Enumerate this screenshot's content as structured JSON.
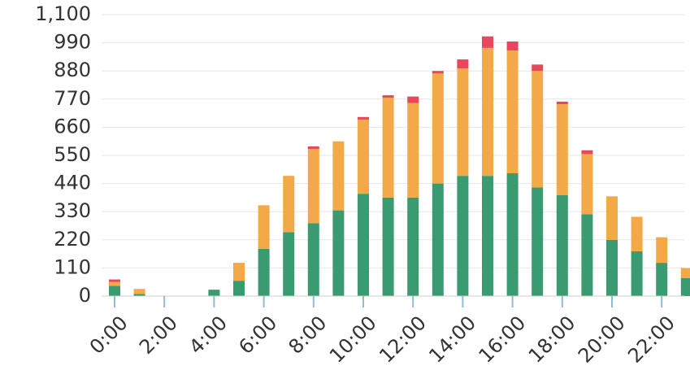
{
  "chart_data": {
    "type": "bar",
    "stacked": true,
    "title": "",
    "xlabel": "",
    "ylabel": "",
    "ylim": [
      0,
      1100
    ],
    "y_ticks": [
      0,
      110,
      220,
      330,
      440,
      550,
      660,
      770,
      880,
      990,
      1100
    ],
    "y_tick_labels": [
      "0",
      "110",
      "220",
      "330",
      "440",
      "550",
      "660",
      "770",
      "880",
      "990",
      "1,100"
    ],
    "categories": [
      "0:00",
      "1:00",
      "2:00",
      "3:00",
      "4:00",
      "5:00",
      "6:00",
      "7:00",
      "8:00",
      "9:00",
      "10:00",
      "11:00",
      "12:00",
      "13:00",
      "14:00",
      "15:00",
      "16:00",
      "17:00",
      "18:00",
      "19:00",
      "20:00",
      "21:00",
      "22:00",
      "23:00"
    ],
    "x_tick_labels": [
      "0:00",
      "2:00",
      "4:00",
      "6:00",
      "8:00",
      "10:00",
      "12:00",
      "14:00",
      "16:00",
      "18:00",
      "20:00",
      "22:00"
    ],
    "grid": true,
    "legend": "none",
    "series": [
      {
        "color": "#3a9b70",
        "values": [
          40,
          8,
          0,
          0,
          25,
          60,
          185,
          250,
          285,
          335,
          400,
          385,
          385,
          440,
          470,
          470,
          480,
          425,
          395,
          320,
          220,
          175,
          130,
          70
        ]
      },
      {
        "color": "#f4a948",
        "values": [
          15,
          20,
          0,
          0,
          0,
          70,
          170,
          220,
          290,
          270,
          290,
          390,
          370,
          430,
          420,
          500,
          480,
          455,
          355,
          235,
          170,
          135,
          100,
          40
        ]
      },
      {
        "color": "#e8485c",
        "values": [
          10,
          0,
          0,
          0,
          0,
          0,
          0,
          0,
          10,
          0,
          10,
          10,
          25,
          10,
          35,
          45,
          35,
          25,
          10,
          15,
          0,
          0,
          0,
          0
        ]
      }
    ]
  }
}
